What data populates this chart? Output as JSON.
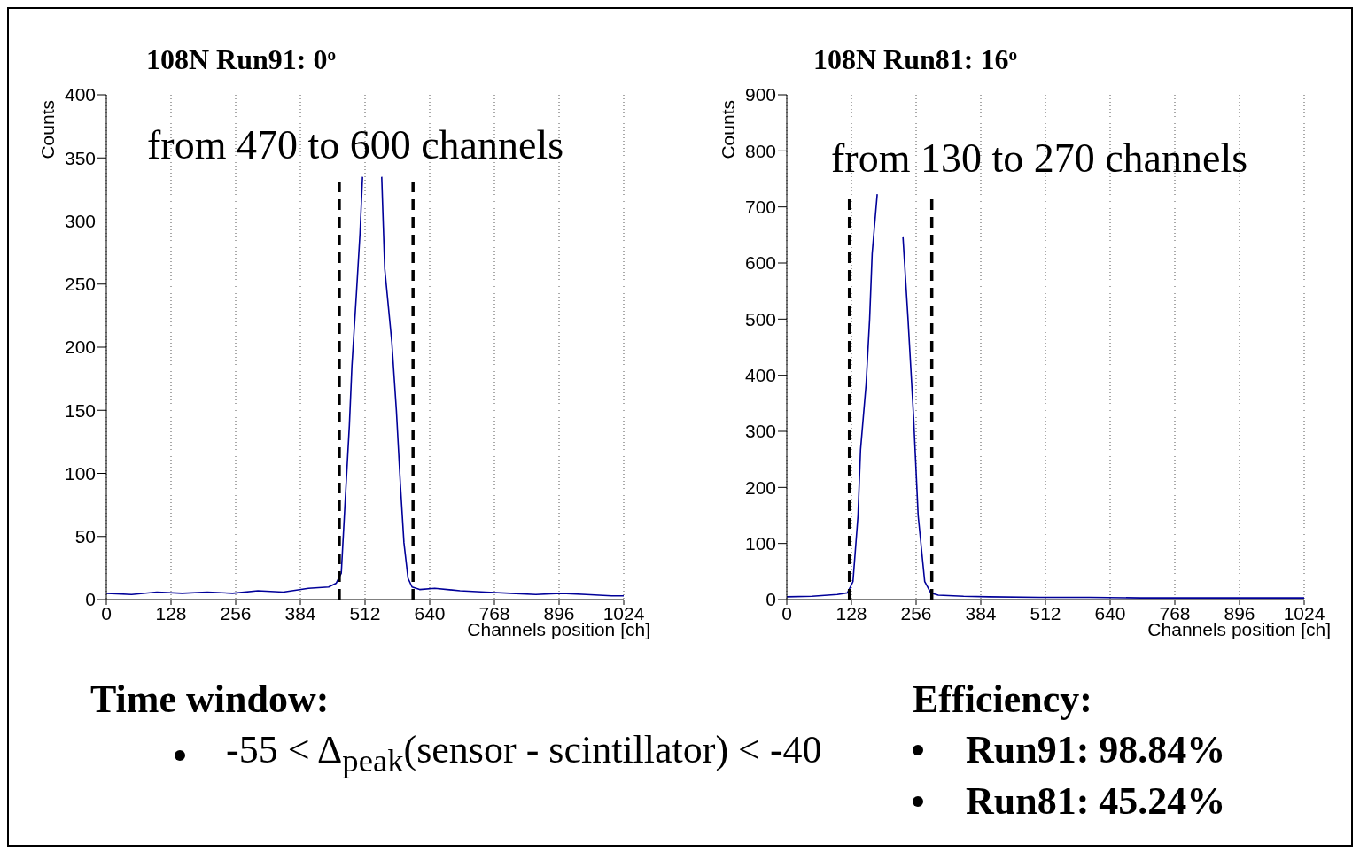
{
  "chart_data": [
    {
      "type": "line",
      "title": "108N Run91: 0$^{o}$",
      "xlabel": "Channels position [ch]",
      "ylabel": "Counts",
      "annotations": [
        "from 470 to 600 channels"
      ],
      "xlim": [
        0,
        1024
      ],
      "xticks": [
        0,
        128,
        256,
        384,
        512,
        640,
        768,
        896,
        1024
      ],
      "ylim": [
        0,
        400
      ],
      "yticks": [
        0,
        50,
        100,
        150,
        200,
        250,
        300,
        350,
        400
      ],
      "grid": "x",
      "line_style": "solid",
      "marker": "none",
      "ref_lines": [
        {
          "axis": "x",
          "value": 461,
          "color": "#000000",
          "line_style": "dashed"
        },
        {
          "axis": "x",
          "value": 607,
          "color": "#000000",
          "line_style": "dashed"
        }
      ],
      "series": [
        {
          "color": "#000099",
          "x": [
            0,
            50,
            100,
            150,
            200,
            250,
            300,
            350,
            400,
            440,
            455,
            465,
            472,
            481,
            486,
            495,
            502,
            507,
            510,
            540,
            545,
            551,
            565,
            574,
            582,
            589,
            597,
            605,
            620,
            650,
            700,
            750,
            800,
            850,
            900,
            950,
            1000,
            1024
          ],
          "values": [
            5,
            4,
            6,
            5,
            6,
            5,
            7,
            6,
            9,
            10,
            13,
            21,
            73,
            138,
            185,
            243,
            290,
            335,
            null,
            null,
            335,
            262,
            204,
            150,
            91,
            45,
            17,
            10,
            8,
            9,
            7,
            6,
            5,
            4,
            5,
            4,
            3,
            3
          ]
        }
      ]
    },
    {
      "type": "line",
      "title": "108N Run81: 16$^{o}$",
      "xlabel": "Channels position [ch]",
      "ylabel": "Counts",
      "annotations": [
        "from 130 to 270 channels"
      ],
      "xlim": [
        0,
        1024
      ],
      "xticks": [
        0,
        128,
        256,
        384,
        512,
        640,
        768,
        896,
        1024
      ],
      "ylim": [
        0,
        900
      ],
      "yticks": [
        0,
        100,
        200,
        300,
        400,
        500,
        600,
        700,
        800,
        900
      ],
      "grid": "x",
      "line_style": "solid",
      "marker": "none",
      "ref_lines": [
        {
          "axis": "x",
          "value": 124,
          "color": "#000000",
          "line_style": "dashed"
        },
        {
          "axis": "x",
          "value": 287,
          "color": "#000000",
          "line_style": "dashed"
        }
      ],
      "series": [
        {
          "color": "#000099",
          "x": [
            0,
            50,
            100,
            120,
            131,
            141,
            146,
            157,
            164,
            169,
            179,
            182,
            228,
            230,
            240,
            251,
            260,
            273,
            285,
            300,
            350,
            400,
            500,
            600,
            700,
            800,
            900,
            1024
          ],
          "values": [
            5,
            6,
            9,
            12,
            32,
            150,
            267,
            384,
            500,
            617,
            723,
            null,
            null,
            646,
            500,
            325,
            150,
            32,
            12,
            8,
            6,
            5,
            4,
            4,
            3,
            3,
            3,
            3
          ]
        }
      ]
    },
    {
      "type": "other",
      "title": "Time window:",
      "annotations": [
        "-55 < Δ$_{peak}$(sensor - scintillator) < -40"
      ]
    },
    {
      "type": "other",
      "title": "Efficiency:",
      "annotations": [
        "Run91: 98.84%",
        "Run81: 45.24%"
      ]
    }
  ]
}
